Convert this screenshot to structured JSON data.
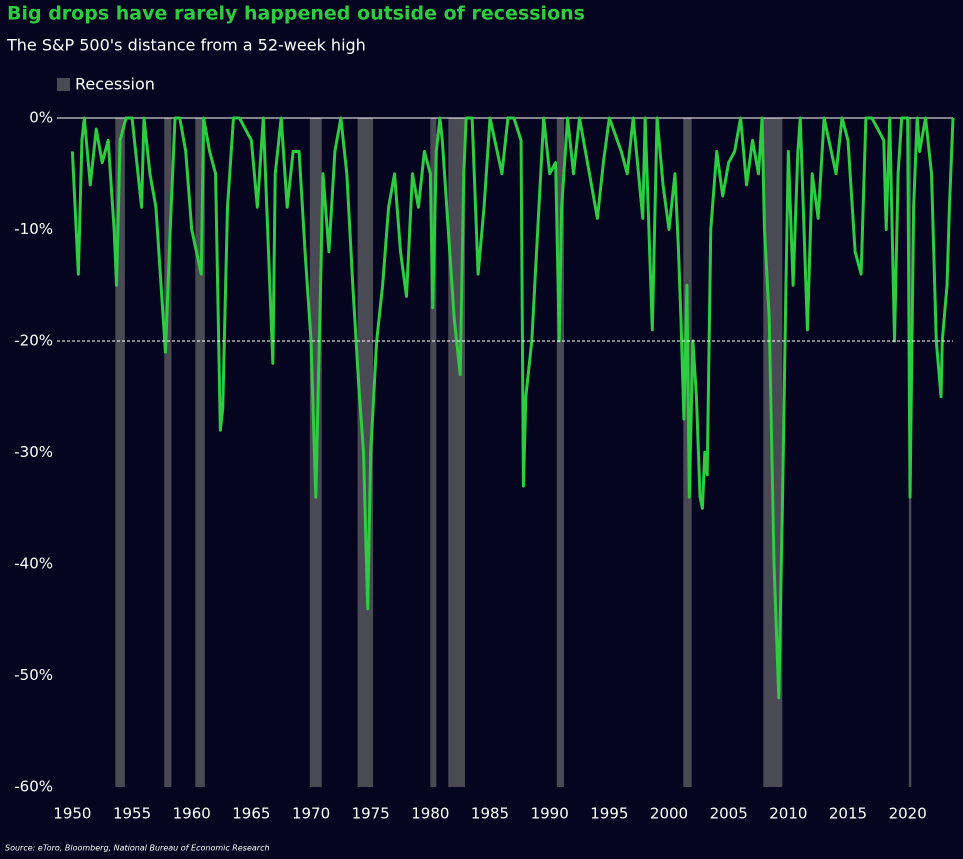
{
  "chart_data": {
    "type": "line",
    "title": "Big drops have rarely happened outside of recessions",
    "subtitle": "The S&P 500's distance from a 52-week high",
    "source": "Source: eToro, Bloomberg, National Bureau of Economic Research",
    "color": "#2ecc40",
    "recession_label": "Recession",
    "recession_color": "#4a4a55",
    "recessions": [
      [
        1953.6,
        1954.4
      ],
      [
        1957.7,
        1958.3
      ],
      [
        1960.3,
        1961.1
      ],
      [
        1969.9,
        1970.9
      ],
      [
        1973.9,
        1975.2
      ],
      [
        1980.0,
        1980.5
      ],
      [
        1981.5,
        1982.9
      ],
      [
        1990.6,
        1991.2
      ],
      [
        2001.2,
        2001.9
      ],
      [
        2007.9,
        2009.5
      ],
      [
        2020.1,
        2020.3
      ]
    ],
    "reference_line": -20,
    "xlim": [
      1949.8,
      2023.8
    ],
    "ylim": [
      -60,
      0
    ],
    "xticks": [
      1950,
      1955,
      1960,
      1965,
      1970,
      1975,
      1980,
      1985,
      1990,
      1995,
      2000,
      2005,
      2010,
      2015,
      2020
    ],
    "yticks": [
      {
        "value": 0,
        "label": "0%"
      },
      {
        "value": -10,
        "label": "-10%"
      },
      {
        "value": -20,
        "label": "-20%"
      },
      {
        "value": -30,
        "label": "-30%"
      },
      {
        "value": -40,
        "label": "-40%"
      },
      {
        "value": -50,
        "label": "-50%"
      },
      {
        "value": -60,
        "label": "-60%"
      }
    ],
    "x": [
      1950,
      1950.5,
      1950.8,
      1951,
      1951.5,
      1952,
      1952.5,
      1953,
      1953.5,
      1953.7,
      1954,
      1954.5,
      1955,
      1955.8,
      1956,
      1956.5,
      1957,
      1957.8,
      1958.2,
      1958.6,
      1959,
      1959.5,
      1960,
      1960.4,
      1960.8,
      1961,
      1961.5,
      1962,
      1962.4,
      1962.6,
      1963,
      1963.5,
      1964,
      1965,
      1965.5,
      1966,
      1966.8,
      1967,
      1967.5,
      1968,
      1968.5,
      1969,
      1969.5,
      1970,
      1970.4,
      1970.8,
      1971,
      1971.5,
      1972,
      1972.5,
      1973,
      1973.5,
      1974,
      1974.4,
      1974.75,
      1975,
      1975.5,
      1976,
      1976.5,
      1977,
      1977.5,
      1978,
      1978.5,
      1979,
      1979.5,
      1980,
      1980.2,
      1980.5,
      1980.8,
      1981,
      1981.5,
      1982,
      1982.5,
      1982.8,
      1983,
      1983.5,
      1984,
      1984.5,
      1985,
      1986,
      1986.5,
      1987,
      1987.6,
      1987.8,
      1988,
      1988.5,
      1989,
      1989.5,
      1990,
      1990.5,
      1990.8,
      1991,
      1991.5,
      1992,
      1992.5,
      1993,
      1994,
      1994.5,
      1995,
      1996,
      1996.5,
      1997,
      1997.8,
      1998,
      1998.6,
      1999,
      1999.5,
      2000,
      2000.5,
      2000.8,
      2001,
      2001.25,
      2001.5,
      2001.7,
      2002,
      2002.3,
      2002.6,
      2002.8,
      2003,
      2003.2,
      2003.5,
      2004,
      2004.5,
      2005,
      2005.5,
      2006,
      2006.5,
      2007,
      2007.5,
      2007.8,
      2008,
      2008.4,
      2008.8,
      2009.2,
      2009.5,
      2009.8,
      2010,
      2010.4,
      2010.8,
      2011,
      2011.6,
      2012,
      2012.5,
      2013,
      2014,
      2014.5,
      2015,
      2015.6,
      2016.1,
      2016.5,
      2017,
      2018,
      2018.2,
      2018.5,
      2018.9,
      2019.2,
      2019.5,
      2020,
      2020.2,
      2020.5,
      2020.8,
      2021,
      2021.5,
      2022,
      2022.4,
      2022.8,
      2022.9,
      2023.3,
      2023.5,
      2023.8
    ],
    "values": [
      -3,
      -14,
      -2,
      0,
      -6,
      -1,
      -4,
      -2,
      -10,
      -15,
      -2,
      0,
      0,
      -8,
      0,
      -5,
      -8,
      -21,
      -10,
      0,
      0,
      -3,
      -10,
      -12,
      -14,
      0,
      -3,
      -5,
      -28,
      -26,
      -8,
      0,
      0,
      -2,
      -8,
      0,
      -22,
      -5,
      0,
      -8,
      -3,
      -3,
      -12,
      -20,
      -34,
      -15,
      -5,
      -12,
      -3,
      0,
      -5,
      -15,
      -24,
      -30,
      -44,
      -30,
      -20,
      -15,
      -8,
      -5,
      -12,
      -16,
      -5,
      -8,
      -3,
      -5,
      -17,
      -3,
      0,
      -2,
      -10,
      -18,
      -23,
      -5,
      0,
      0,
      -14,
      -8,
      0,
      -5,
      0,
      0,
      -2,
      -33,
      -25,
      -20,
      -10,
      0,
      -5,
      -4,
      -20,
      -8,
      0,
      -5,
      0,
      -3,
      -9,
      -4,
      0,
      -3,
      -5,
      0,
      -9,
      0,
      -19,
      0,
      -6,
      -10,
      -5,
      -12,
      -18,
      -27,
      -15,
      -34,
      -20,
      -25,
      -34,
      -35,
      -30,
      -32,
      -10,
      -3,
      -7,
      -4,
      -3,
      0,
      -6,
      -2,
      -5,
      0,
      -10,
      -18,
      -40,
      -52,
      -35,
      -15,
      -3,
      -15,
      -3,
      0,
      -19,
      -5,
      -9,
      0,
      -5,
      0,
      -2,
      -12,
      -14,
      0,
      0,
      -2,
      -10,
      0,
      -20,
      -5,
      0,
      0,
      -34,
      -8,
      0,
      -3,
      0,
      -5,
      -20,
      -25,
      -20,
      -15,
      -8,
      0
    ]
  }
}
